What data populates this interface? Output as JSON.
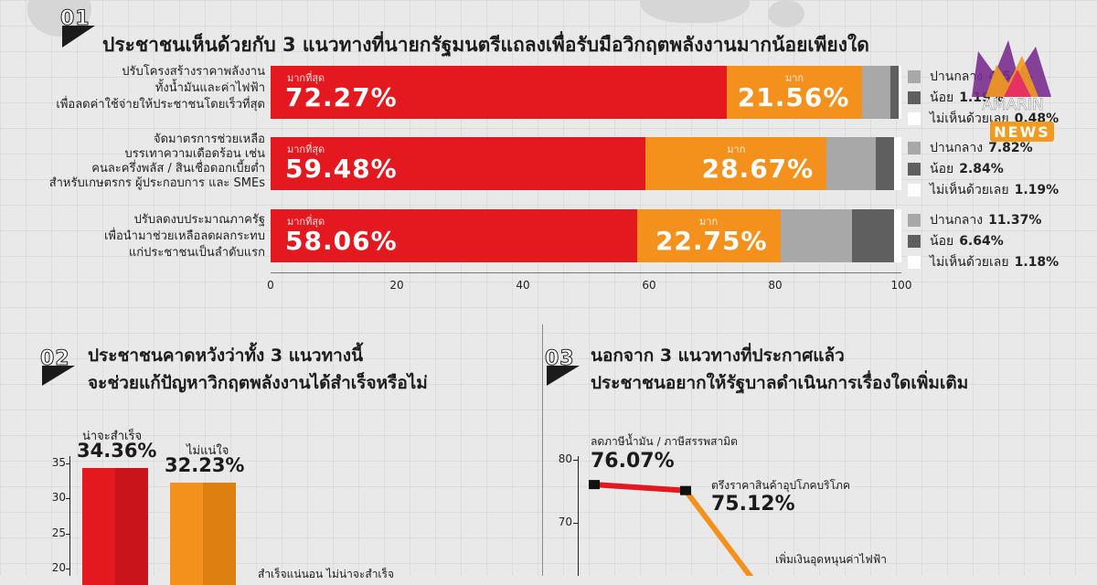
{
  "section1": {
    "number": "01",
    "title": "ประชาชนเห็นด้วยกับ 3 แนวทางที่นายกรัฐมนตรีแถลงเพื่อรับมือวิกฤตพลังงานมากน้อยเพียงใด"
  },
  "section2": {
    "number": "02",
    "title_line1": "ประชาชนคาดหวังว่าทั้ง 3 แนวทางนี้",
    "title_line2": "จะช่วยแก้ปัญหาวิกฤตพลังงานได้สำเร็จหรือไม่"
  },
  "section3": {
    "number": "03",
    "title_line1": "นอกจาก 3 แนวทางที่ประกาศแล้ว",
    "title_line2": "ประชาชนอยากให้รัฐบาลดำเนินการเรื่องใดเพิ่มเติม"
  },
  "logo": {
    "top": "AMARIN",
    "bottom": "NEWS"
  },
  "colors": {
    "red": "#e3191f",
    "orange": "#f3911c",
    "gray": "#a8a8a8",
    "dark": "#5f5f5f",
    "white": "#ffffff"
  },
  "chart_data": [
    {
      "type": "bar",
      "orientation": "horizontal-stacked",
      "categories": [
        "ปรับโครงสร้างราคาพลังงาน ทั้งน้ำมันและค่าไฟฟ้า เพื่อลดค่าใช้จ่ายให้ประชาชนโดยเร็วที่สุด",
        "จัดมาตรการช่วยเหลือ บรรเทาความเดือดร้อน เช่น คนละครึ่งพลัส / สินเชื่อดอกเบี้ยต่ำ สำหรับเกษตรกร ผู้ประกอบการ และ SMEs",
        "ปรับลดงบประมาณภาครัฐ เพื่อนำมาช่วยเหลือลดผลกระทบ แก่ประชาชนเป็นลำดับแรก"
      ],
      "category_lines": [
        [
          "ปรับโครงสร้างราคาพลังงาน",
          "ทั้งน้ำมันและค่าไฟฟ้า",
          "เพื่อลดค่าใช้จ่ายให้ประชาชนโดยเร็วที่สุด"
        ],
        [
          "จัดมาตรการช่วยเหลือ",
          "บรรเทาความเดือดร้อน เช่น",
          "คนละครึ่งพลัส / สินเชื่อดอกเบี้ยต่ำ",
          "สำหรับเกษตรกร ผู้ประกอบการ และ SMEs"
        ],
        [
          "ปรับลดงบประมาณภาครัฐ",
          "เพื่อนำมาช่วยเหลือลดผลกระทบ",
          "แก่ประชาชนเป็นลำดับแรก"
        ]
      ],
      "series": [
        {
          "name": "มากที่สุด",
          "values": [
            72.27,
            59.48,
            58.06
          ],
          "labels": [
            "72.27%",
            "59.48%",
            "58.06%"
          ]
        },
        {
          "name": "มาก",
          "values": [
            21.56,
            28.67,
            22.75
          ],
          "labels": [
            "21.56%",
            "28.67%",
            "22.75%"
          ]
        },
        {
          "name": "ปานกลาง",
          "values": [
            4.5,
            7.82,
            11.37
          ],
          "labels": [
            "4.50%",
            "7.82%",
            "11.37%"
          ]
        },
        {
          "name": "น้อย",
          "values": [
            1.19,
            2.84,
            6.64
          ],
          "labels": [
            "1.19%",
            "2.84%",
            "6.64%"
          ]
        },
        {
          "name": "ไม่เห็นด้วยเลย",
          "values": [
            0.48,
            1.19,
            1.18
          ],
          "labels": [
            "0.48%",
            "1.19%",
            "1.18%"
          ]
        }
      ],
      "side_legend": [
        [
          {
            "label": "ปานกลาง",
            "value": "4.50%"
          },
          {
            "label": "น้อย",
            "value": "1.19%"
          },
          {
            "label": "ไม่เห็นด้วยเลย",
            "value": "0.48%"
          }
        ],
        [
          {
            "label": "ปานกลาง",
            "value": "7.82%"
          },
          {
            "label": "น้อย",
            "value": "2.84%"
          },
          {
            "label": "ไม่เห็นด้วยเลย",
            "value": "1.19%"
          }
        ],
        [
          {
            "label": "ปานกลาง",
            "value": "11.37%"
          },
          {
            "label": "น้อย",
            "value": "6.64%"
          },
          {
            "label": "ไม่เห็นด้วยเลย",
            "value": "1.18%"
          }
        ]
      ],
      "xlim": [
        0,
        100
      ],
      "xticks": [
        "0",
        "20",
        "40",
        "60",
        "80",
        "100"
      ]
    },
    {
      "type": "bar",
      "categories": [
        "น่าจะสำเร็จ",
        "ไม่แน่ใจ"
      ],
      "values": [
        34.36,
        32.23
      ],
      "labels": [
        "34.36%",
        "32.23%"
      ],
      "ylim": [
        0,
        35
      ],
      "yticks": [
        "35",
        "30",
        "25",
        "20"
      ],
      "partial_label": "สำเร็จแน่นอน     ไม่น่าจะสำเร็จ"
    },
    {
      "type": "line",
      "points": [
        {
          "label": "ลดภาษีน้ำมัน / ภาษีสรรพสามิต",
          "value": 76.07,
          "value_label": "76.07%"
        },
        {
          "label": "ตรึงราคาสินค้าอุปโภคบริโภค",
          "value": 75.12,
          "value_label": "75.12%"
        },
        {
          "label": "เพิ่มเงินอุดหนุนค่าไฟฟ้า",
          "value": null,
          "value_label": ""
        }
      ],
      "ylim": [
        60,
        80
      ],
      "yticks": [
        "80",
        "70"
      ]
    }
  ]
}
